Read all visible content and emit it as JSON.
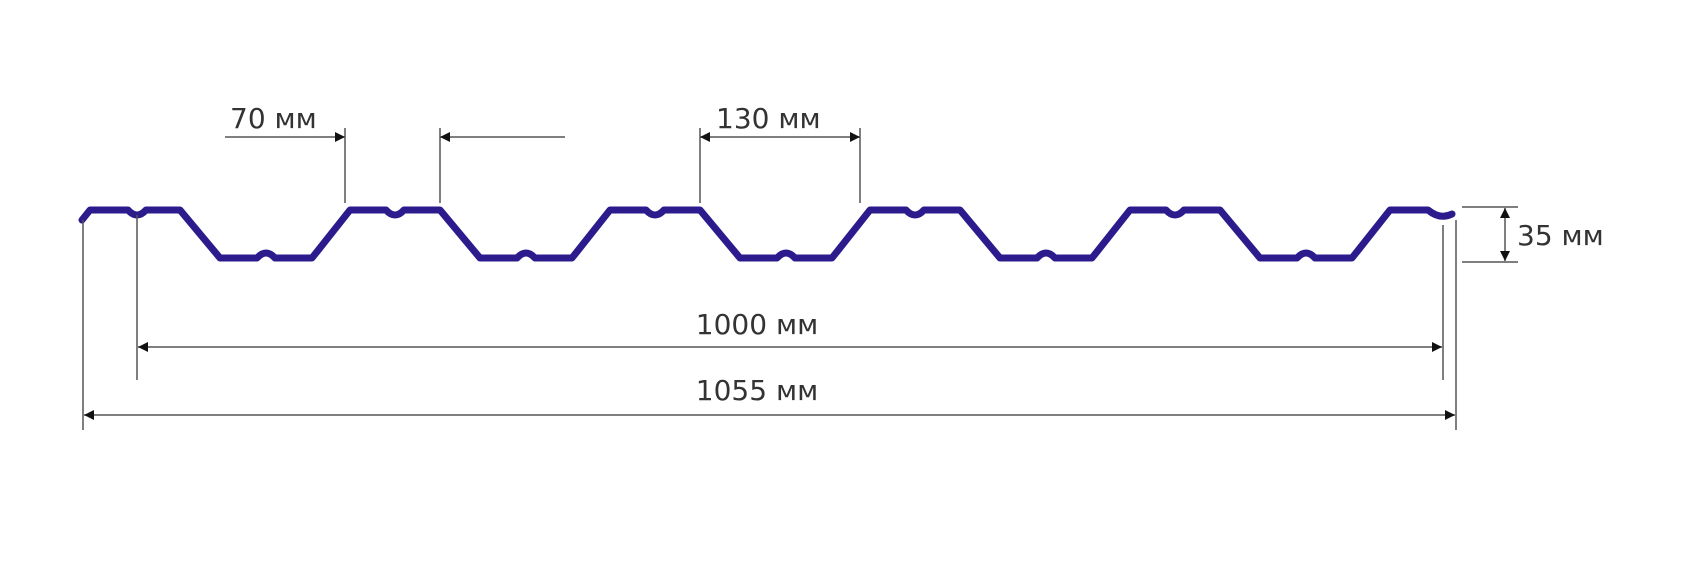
{
  "diagram": {
    "profile_color": "#2b1b8c",
    "labels": {
      "rib_top_width": "70 мм",
      "pitch": "130 мм",
      "height": "35 мм",
      "useful_width": "1000 мм",
      "total_width": "1055 мм"
    }
  }
}
